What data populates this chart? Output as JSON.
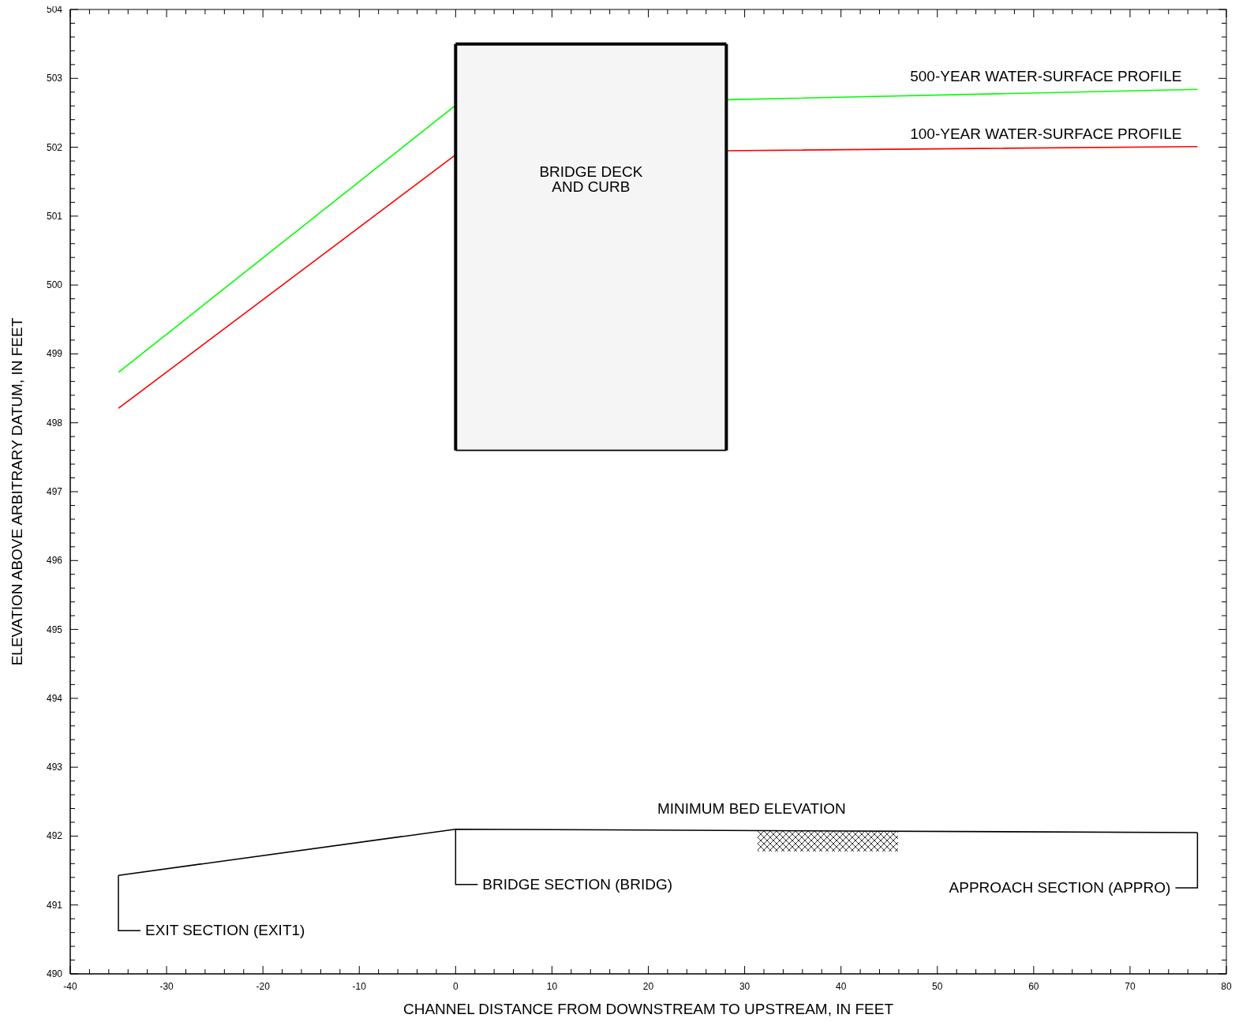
{
  "chart_data": {
    "type": "line",
    "xlabel": "CHANNEL DISTANCE FROM DOWNSTREAM TO UPSTREAM, IN FEET",
    "ylabel": "ELEVATION ABOVE ARBITRARY DATUM, IN FEET",
    "xlim": [
      -40,
      80
    ],
    "ylim": [
      490,
      504
    ],
    "xticks": [
      -40,
      {
        "value": -38,
        "label": null
      },
      {
        "value": -36,
        "label": null
      },
      {
        "value": -34,
        "label": null
      },
      {
        "value": -32,
        "label": null
      },
      -30,
      {
        "value": -28,
        "label": null
      },
      {
        "value": -26,
        "label": null
      },
      {
        "value": -24,
        "label": null
      },
      {
        "value": -22,
        "label": null
      },
      -20,
      {
        "value": -18,
        "label": null
      },
      {
        "value": -16,
        "label": null
      },
      {
        "value": -14,
        "label": null
      },
      {
        "value": -12,
        "label": null
      },
      -10,
      {
        "value": -8,
        "label": null
      },
      {
        "value": -6,
        "label": null
      },
      {
        "value": -4,
        "label": null
      },
      {
        "value": -2,
        "label": null
      },
      0,
      {
        "value": 2,
        "label": null
      },
      {
        "value": 4,
        "label": null
      },
      {
        "value": 6,
        "label": null
      },
      {
        "value": 8,
        "label": null
      },
      10,
      {
        "value": 12,
        "label": null
      },
      {
        "value": 14,
        "label": null
      },
      {
        "value": 16,
        "label": null
      },
      {
        "value": 18,
        "label": null
      },
      20,
      {
        "value": 22,
        "label": null
      },
      {
        "value": 24,
        "label": null
      },
      {
        "value": 26,
        "label": null
      },
      {
        "value": 28,
        "label": null
      },
      30,
      {
        "value": 32,
        "label": null
      },
      {
        "value": 34,
        "label": null
      },
      {
        "value": 36,
        "label": null
      },
      {
        "value": 38,
        "label": null
      },
      40,
      {
        "value": 42,
        "label": null
      },
      {
        "value": 44,
        "label": null
      },
      {
        "value": 46,
        "label": null
      },
      {
        "value": 48,
        "label": null
      },
      50,
      {
        "value": 52,
        "label": null
      },
      {
        "value": 54,
        "label": null
      },
      {
        "value": 56,
        "label": null
      },
      {
        "value": 58,
        "label": null
      },
      60,
      {
        "value": 62,
        "label": null
      },
      {
        "value": 64,
        "label": null
      },
      {
        "value": 66,
        "label": null
      },
      {
        "value": 68,
        "label": null
      },
      70,
      {
        "value": 72,
        "label": null
      },
      {
        "value": 74,
        "label": null
      },
      {
        "value": 76,
        "label": null
      },
      {
        "value": 78,
        "label": null
      },
      80
    ],
    "yticks": [
      490,
      {
        "value": 490.2,
        "label": null
      },
      {
        "value": 490.4,
        "label": null
      },
      {
        "value": 490.6,
        "label": null
      },
      {
        "value": 490.8,
        "label": null
      },
      491,
      {
        "value": 491.2,
        "label": null
      },
      {
        "value": 491.4,
        "label": null
      },
      {
        "value": 491.6,
        "label": null
      },
      {
        "value": 491.8,
        "label": null
      },
      492,
      {
        "value": 492.2,
        "label": null
      },
      {
        "value": 492.4,
        "label": null
      },
      {
        "value": 492.6,
        "label": null
      },
      {
        "value": 492.8,
        "label": null
      },
      493,
      {
        "value": 493.2,
        "label": null
      },
      {
        "value": 493.4,
        "label": null
      },
      {
        "value": 493.6,
        "label": null
      },
      {
        "value": 493.8,
        "label": null
      },
      494,
      {
        "value": 494.2,
        "label": null
      },
      {
        "value": 494.4,
        "label": null
      },
      {
        "value": 494.6,
        "label": null
      },
      {
        "value": 494.8,
        "label": null
      },
      495,
      {
        "value": 495.2,
        "label": null
      },
      {
        "value": 495.4,
        "label": null
      },
      {
        "value": 495.6,
        "label": null
      },
      {
        "value": 495.8,
        "label": null
      },
      496,
      {
        "value": 496.2,
        "label": null
      },
      {
        "value": 496.4,
        "label": null
      },
      {
        "value": 496.6,
        "label": null
      },
      {
        "value": 496.8,
        "label": null
      },
      497,
      {
        "value": 497.2,
        "label": null
      },
      {
        "value": 497.4,
        "label": null
      },
      {
        "value": 497.6,
        "label": null
      },
      {
        "value": 497.8,
        "label": null
      },
      498,
      {
        "value": 498.2,
        "label": null
      },
      {
        "value": 498.4,
        "label": null
      },
      {
        "value": 498.6,
        "label": null
      },
      {
        "value": 498.8,
        "label": null
      },
      499,
      {
        "value": 499.2,
        "label": null
      },
      {
        "value": 499.4,
        "label": null
      },
      {
        "value": 499.6,
        "label": null
      },
      {
        "value": 499.8,
        "label": null
      },
      500,
      {
        "value": 500.2,
        "label": null
      },
      {
        "value": 500.4,
        "label": null
      },
      {
        "value": 500.6,
        "label": null
      },
      {
        "value": 500.8,
        "label": null
      },
      501,
      {
        "value": 501.2,
        "label": null
      },
      {
        "value": 501.4,
        "label": null
      },
      {
        "value": 501.6,
        "label": null
      },
      {
        "value": 501.8,
        "label": null
      },
      502,
      {
        "value": 502.2,
        "label": null
      },
      {
        "value": 502.4,
        "label": null
      },
      {
        "value": 502.6,
        "label": null
      },
      {
        "value": 502.8,
        "label": null
      },
      503,
      {
        "value": 503.2,
        "label": null
      },
      {
        "value": 503.4,
        "label": null
      },
      {
        "value": 503.6,
        "label": null
      },
      {
        "value": 503.8,
        "label": null
      },
      504
    ],
    "marker": "none",
    "line_style": "solid",
    "series": [
      {
        "name": "500-YEAR WATER-SURFACE PROFILE",
        "color": "#00ff00",
        "x": [
          -35,
          0,
          14,
          28.1,
          77
        ],
        "values": [
          498.73,
          502.61,
          null,
          502.69,
          502.84
        ]
      },
      {
        "name": "100-YEAR WATER-SURFACE PROFILE",
        "color": "#ff0000",
        "x": [
          -35,
          0,
          14,
          28.1,
          77
        ],
        "values": [
          498.21,
          501.89,
          null,
          501.95,
          502.01
        ]
      },
      {
        "name": "MINIMUM BED ELEVATION",
        "color": "#000000",
        "x": [
          -35,
          0,
          77
        ],
        "values": [
          491.43,
          492.1,
          492.05
        ]
      },
      {
        "color": "#000000",
        "x": [
          0,
          28.1
        ],
        "values": [
          503.5,
          503.5
        ],
        "lower": [
          497.6,
          497.6
        ],
        "upper": [
          503.5,
          503.5
        ]
      },
      {
        "color": "#000000",
        "x": [
          0,
          28.1
        ],
        "values": [
          497.6,
          497.6
        ]
      }
    ],
    "annotations": [
      "BRIDGE DECK\nAND CURB",
      {
        "text": "EXIT SECTION (EXIT1)",
        "x": -35,
        "y": 491.43
      },
      {
        "text": "BRIDGE SECTION (BRIDG)",
        "x": 0,
        "y": 492.1
      },
      {
        "text": "APPROACH SECTION (APPRO)",
        "x": 77,
        "y": 492.05
      }
    ]
  }
}
